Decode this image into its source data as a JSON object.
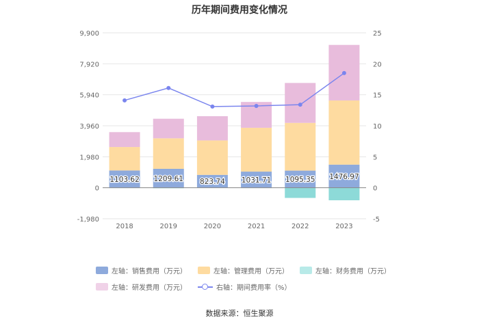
{
  "title": "历年期间费用变化情况",
  "source": "数据来源：恒生聚源",
  "colors": {
    "sales": "#8eaadc",
    "admin": "#fedba0",
    "finance": "#8ddad8",
    "rnd": "#e8bcdc",
    "rate": "#7a85ee",
    "grid": "#e6e6e6",
    "axis_text": "#666666"
  },
  "legend": [
    {
      "key": "sales",
      "label": "左轴：销售费用（万元）",
      "kind": "bar"
    },
    {
      "key": "admin",
      "label": "左轴：管理费用（万元）",
      "kind": "bar"
    },
    {
      "key": "finance",
      "label": "左轴：财务费用（万元）",
      "kind": "bar"
    },
    {
      "key": "rnd",
      "label": "左轴：研发费用（万元）",
      "kind": "bar"
    },
    {
      "key": "rate",
      "label": "右轴：期间费用率（%）",
      "kind": "line"
    }
  ],
  "chart_data": {
    "type": "bar",
    "title": "历年期间费用变化情况",
    "categories": [
      "2018",
      "2019",
      "2020",
      "2021",
      "2022",
      "2023"
    ],
    "y_left": {
      "min": -1980,
      "max": 9900,
      "ticks": [
        -1980,
        0,
        1980,
        3960,
        5940,
        7920,
        9900
      ],
      "tick_labels": [
        "-1,980",
        "0",
        "1,980",
        "3,960",
        "5,940",
        "7,920",
        "9,900"
      ]
    },
    "y_right": {
      "min": -5,
      "max": 25,
      "ticks": [
        -5,
        0,
        5,
        10,
        15,
        20,
        25
      ],
      "tick_labels": [
        "-5",
        "0",
        "5",
        "10",
        "15",
        "20",
        "25"
      ]
    },
    "series": [
      {
        "key": "sales",
        "name": "左轴：销售费用（万元）",
        "stack": true,
        "values": [
          1103.62,
          1209.61,
          823.74,
          1031.71,
          1095.35,
          1476.97
        ],
        "labels": [
          "1103.62",
          "1209.61",
          "823.74",
          "1031.71",
          "1095.35",
          "1476.97"
        ]
      },
      {
        "key": "admin",
        "name": "左轴：管理费用（万元）",
        "stack": true,
        "values": [
          1500,
          1950,
          2200,
          2800,
          3050,
          4100
        ]
      },
      {
        "key": "finance",
        "name": "左轴：财务费用（万元）",
        "stack": true,
        "values": [
          -20,
          -30,
          -15,
          -20,
          -650,
          -800
        ]
      },
      {
        "key": "rnd",
        "name": "左轴：研发费用（万元）",
        "stack": true,
        "values": [
          950,
          1250,
          1550,
          1650,
          2550,
          3550
        ]
      },
      {
        "key": "rate",
        "name": "右轴：期间费用率（%）",
        "type": "line",
        "axis": "right",
        "values": [
          14.1,
          16.1,
          13.1,
          13.2,
          13.4,
          18.5
        ]
      }
    ]
  }
}
